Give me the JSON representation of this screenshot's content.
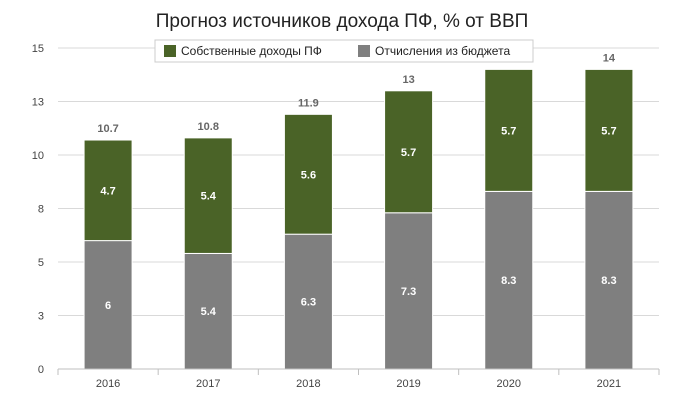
{
  "chart_data": {
    "type": "bar",
    "stacked": true,
    "title": "Прогноз источников дохода ПФ, % от ВВП",
    "xlabel": "",
    "ylabel": "",
    "categories": [
      "2016",
      "2017",
      "2018",
      "2019",
      "2020",
      "2021"
    ],
    "series": [
      {
        "name": "Отчисления из бюджета",
        "values": [
          6,
          5.4,
          6.3,
          7.3,
          8.3,
          8.3
        ],
        "color": "#7f7f7f"
      },
      {
        "name": "Собственные доходы ПФ",
        "values": [
          4.7,
          5.4,
          5.6,
          5.7,
          5.7,
          5.7
        ],
        "color": "#4a6327"
      }
    ],
    "totals": [
      10.7,
      10.8,
      11.9,
      13,
      14,
      14
    ],
    "value_labels": {
      "Отчисления из бюджета": [
        "6",
        "5.4",
        "6.3",
        "7.3",
        "8.3",
        "8.3"
      ],
      "Собственные доходы ПФ": [
        "4.7",
        "5.4",
        "5.6",
        "5.7",
        "5.7",
        "5.7"
      ]
    },
    "total_labels": [
      "10.7",
      "10.8",
      "11.9",
      "13",
      "14",
      "14"
    ],
    "ylim": [
      0,
      15
    ],
    "yticks": [
      0,
      2.5,
      5,
      7.5,
      10,
      12.5,
      15
    ],
    "ytick_labels": [
      "0",
      "3",
      "5",
      "8",
      "10",
      "13",
      "15"
    ],
    "grid": true,
    "legend_position": "top",
    "legend_order": [
      "Собственные доходы ПФ",
      "Отчисления из бюджета"
    ]
  }
}
